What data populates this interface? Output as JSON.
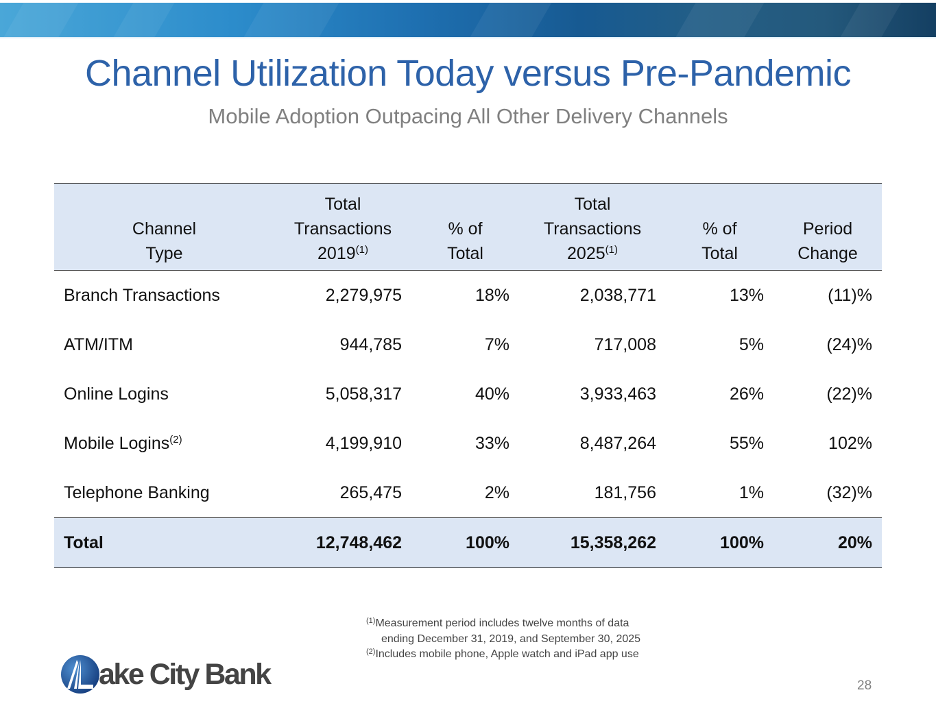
{
  "title": "Channel Utilization Today versus Pre-Pandemic",
  "subtitle": "Mobile Adoption Outpacing All Other Delivery Channels",
  "table": {
    "headers": [
      {
        "lines": [
          "Channel",
          "Type"
        ],
        "sup": ""
      },
      {
        "lines": [
          "Total",
          "Transactions",
          "2019"
        ],
        "sup": "(1)"
      },
      {
        "lines": [
          "% of",
          "Total"
        ],
        "sup": ""
      },
      {
        "lines": [
          "Total",
          "Transactions",
          "2025"
        ],
        "sup": "(1)"
      },
      {
        "lines": [
          "% of",
          "Total"
        ],
        "sup": ""
      },
      {
        "lines": [
          "Period",
          "Change"
        ],
        "sup": ""
      }
    ],
    "rows": [
      {
        "channel": "Branch Transactions",
        "sup": "",
        "t2019": "2,279,975",
        "p2019": "18%",
        "t2025": "2,038,771",
        "p2025": "13%",
        "change": "(11)%"
      },
      {
        "channel": "ATM/ITM",
        "sup": "",
        "t2019": "944,785",
        "p2019": "7%",
        "t2025": "717,008",
        "p2025": "5%",
        "change": "(24)%"
      },
      {
        "channel": "Online Logins",
        "sup": "",
        "t2019": "5,058,317",
        "p2019": "40%",
        "t2025": "3,933,463",
        "p2025": "26%",
        "change": "(22)%"
      },
      {
        "channel": "Mobile Logins",
        "sup": "(2)",
        "t2019": "4,199,910",
        "p2019": "33%",
        "t2025": "8,487,264",
        "p2025": "55%",
        "change": "102%"
      },
      {
        "channel": "Telephone Banking",
        "sup": "",
        "t2019": "265,475",
        "p2019": "2%",
        "t2025": "181,756",
        "p2025": "1%",
        "change": "(32)%"
      }
    ],
    "total": {
      "channel": "Total",
      "t2019": "12,748,462",
      "p2019": "100%",
      "t2025": "15,358,262",
      "p2025": "100%",
      "change": "20%"
    }
  },
  "footnotes": {
    "n1_mark": "(1)",
    "n1_line1": "Measurement period includes twelve months of data",
    "n1_line2": "ending December 31, 2019, and September 30, 2025",
    "n2_mark": "(2)",
    "n2_line1": "Includes mobile phone, Apple watch and iPad app use"
  },
  "logo": "Lake City Bank",
  "logo_text": "ake City Bank",
  "page_number": "28"
}
